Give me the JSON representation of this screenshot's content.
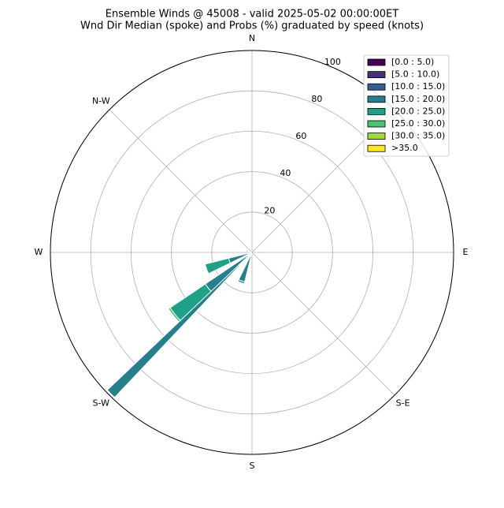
{
  "chart_data": {
    "type": "windrose",
    "title": "Ensemble Winds @ 45008 - valid 2025-05-02 00:00:00ET",
    "subtitle": "Wnd Dir Median (spoke) and Probs (%) graduated by speed (knots)",
    "xticks": [
      {
        "value": 0,
        "label": "N"
      },
      {
        "value": 90,
        "label": "E"
      },
      {
        "value": 135,
        "label": "S-E"
      },
      {
        "value": 180,
        "label": "S"
      },
      {
        "value": 225,
        "label": "S-W"
      },
      {
        "value": 270,
        "label": "W"
      },
      {
        "value": 315,
        "label": "N-W"
      }
    ],
    "ylim": [
      0,
      100
    ],
    "yticks": [
      20,
      40,
      60,
      80,
      100
    ],
    "grid": true,
    "legend": "upper right",
    "x": [
      200,
      230,
      250,
      285
    ],
    "series": [
      {
        "name": "[0.0 : 5.0)",
        "color": "#440154",
        "values": [
          0,
          0,
          0,
          0
        ]
      },
      {
        "name": "[5.0 : 10.0)",
        "color": "#46327e",
        "values": [
          0,
          0,
          0,
          1
        ]
      },
      {
        "name": "[10.0 : 15.0)",
        "color": "#365c8d",
        "values": [
          1,
          1,
          1,
          2
        ]
      },
      {
        "name": "[15.0 : 20.0)",
        "color": "#277f8e",
        "values": [
          14,
          27,
          11,
          0
        ]
      },
      {
        "name": "[20.0 : 25.0)",
        "color": "#1fa187",
        "values": [
          1,
          21,
          12,
          0
        ]
      },
      {
        "name": "[25.0 : 30.0)",
        "color": "#4ac16d",
        "values": [
          0,
          1,
          0,
          0
        ]
      },
      {
        "name": "[30.0 : 35.0)",
        "color": "#a0da39",
        "values": [
          0,
          0,
          0,
          0
        ]
      },
      {
        "name": ">35.0",
        "color": "#fde725",
        "values": [
          0,
          0,
          0,
          0
        ]
      }
    ],
    "median": {
      "x": 225,
      "value": 99,
      "color": "#277f8e"
    }
  }
}
